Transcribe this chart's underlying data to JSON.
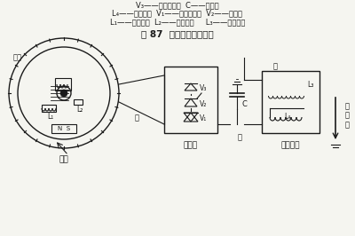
{
  "title": "图 87  磁电机工作原理图",
  "legend_line1": "L₁——充电线圈  L₂——触发线圈     L₃——初级线圈",
  "legend_line2": "L₄——次级线圈  V₁——整流二极管  V₂——可控硅",
  "legend_line3": "V₃——振荡二极管  C——电容器",
  "label_flywheel": "飞轮",
  "label_control": "控制盒",
  "label_ignition": "点火线圈",
  "label_baseboard": "底板",
  "label_yellow": "黄",
  "label_green": "绿",
  "label_red": "红",
  "label_spark": "火\n花\n塞",
  "bg_color": "#f5f5f0",
  "line_color": "#1a1a1a",
  "text_color": "#1a1a1a"
}
